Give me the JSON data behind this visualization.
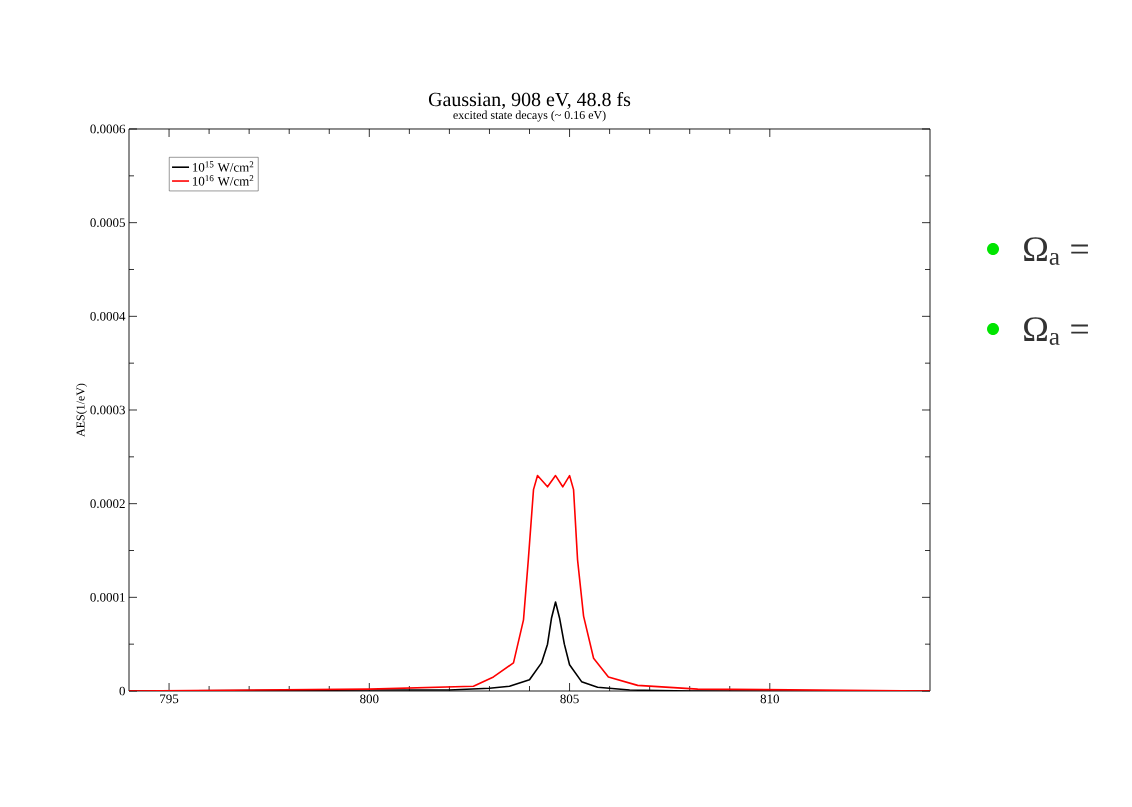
{
  "chart_data": {
    "type": "line",
    "title": "Gaussian, 908 eV, 48.8 fs",
    "subtitle": "excited state decays (~ 0.16 eV)",
    "ylabel": "AES(1/eV)",
    "annotations": [
      "Ω$_{a}$ =",
      "Ω$_{a}$ ="
    ],
    "xlim": [
      794,
      814
    ],
    "xticks": [
      795,
      800,
      805,
      810
    ],
    "ylim": [
      0,
      0.0006
    ],
    "yticks": [
      0,
      0.0001,
      0.0002,
      0.0003,
      0.0004,
      0.0005,
      0.0006
    ],
    "grid": false,
    "legend": "top left",
    "marker": "none",
    "line_style": "solid",
    "series": [
      {
        "name": "10$^{15}$ W/cm$^{2}$",
        "color": "#000000",
        "x": [
          794,
          800,
          802,
          803,
          803.5,
          804,
          804.3,
          804.45,
          804.55,
          804.65,
          804.75,
          804.87,
          805.0,
          805.3,
          805.7,
          806.5,
          808,
          814
        ],
        "values": [
          0,
          1e-06,
          1e-06,
          3e-06,
          5e-06,
          1.2e-05,
          3e-05,
          5e-05,
          7.8e-05,
          9.5e-05,
          7.8e-05,
          5e-05,
          2.8e-05,
          1e-05,
          4e-06,
          1e-06,
          0,
          0
        ]
      },
      {
        "name": "10$^{16}$ W/cm$^{2}$",
        "color": "#ff0000",
        "x": [
          794,
          800,
          802.6,
          803.1,
          803.6,
          803.85,
          803.97,
          804.1,
          804.2,
          804.45,
          804.65,
          804.83,
          805.0,
          805.1,
          805.2,
          805.35,
          805.6,
          805.97,
          806.7,
          808.2,
          814
        ],
        "values": [
          0,
          2e-06,
          5e-06,
          1.5e-05,
          3e-05,
          7.6e-05,
          0.00014,
          0.000215,
          0.00023,
          0.000218,
          0.00023,
          0.000218,
          0.00023,
          0.000215,
          0.00014,
          8e-05,
          3.5e-05,
          1.5e-05,
          6e-06,
          2e-06,
          0
        ]
      }
    ]
  }
}
